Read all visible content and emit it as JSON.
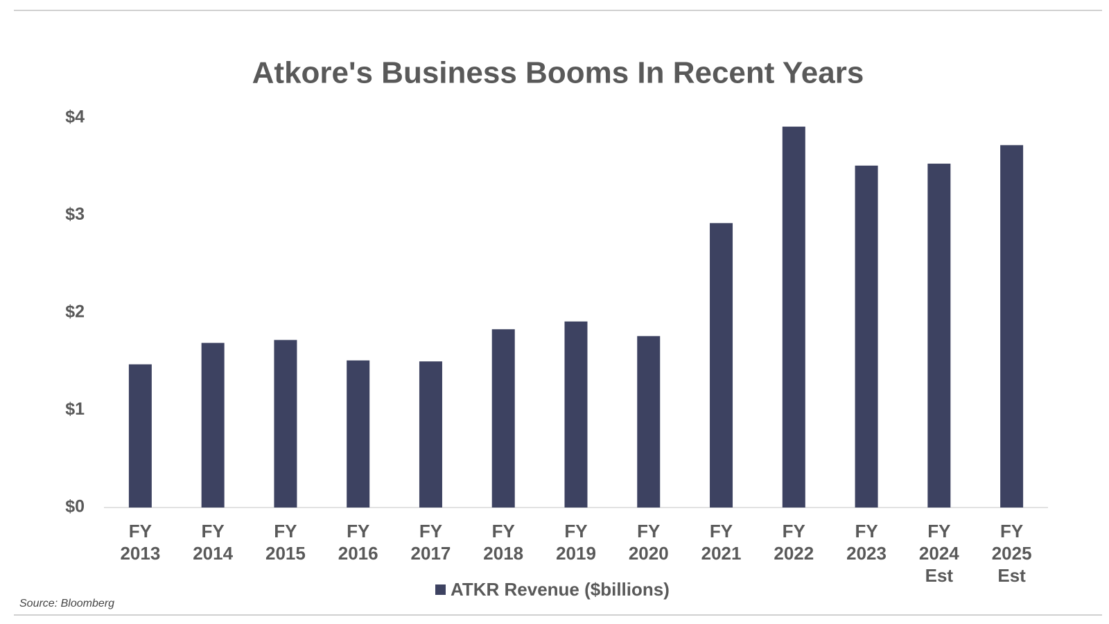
{
  "chart_data": {
    "type": "bar",
    "title": "Atkore's Business Booms In Recent Years",
    "categories": [
      "FY 2013",
      "FY 2014",
      "FY 2015",
      "FY 2016",
      "FY 2017",
      "FY 2018",
      "FY 2019",
      "FY 2020",
      "FY 2021",
      "FY 2022",
      "FY 2023",
      "FY 2024 Est",
      "FY 2025 Est"
    ],
    "series": [
      {
        "name": "ATKR Revenue ($billions)",
        "color": "#3d4261",
        "values": [
          1.47,
          1.69,
          1.72,
          1.51,
          1.5,
          1.83,
          1.91,
          1.76,
          2.92,
          3.91,
          3.51,
          3.53,
          3.72
        ]
      }
    ],
    "ylim": [
      0,
      4
    ],
    "yticks": [
      {
        "value": 0,
        "label": "$0"
      },
      {
        "value": 1,
        "label": "$1"
      },
      {
        "value": 2,
        "label": "$2"
      },
      {
        "value": 3,
        "label": "$3"
      },
      {
        "value": 4,
        "label": "$4"
      }
    ],
    "legend": "bottom",
    "source": "Source: Bloomberg"
  }
}
